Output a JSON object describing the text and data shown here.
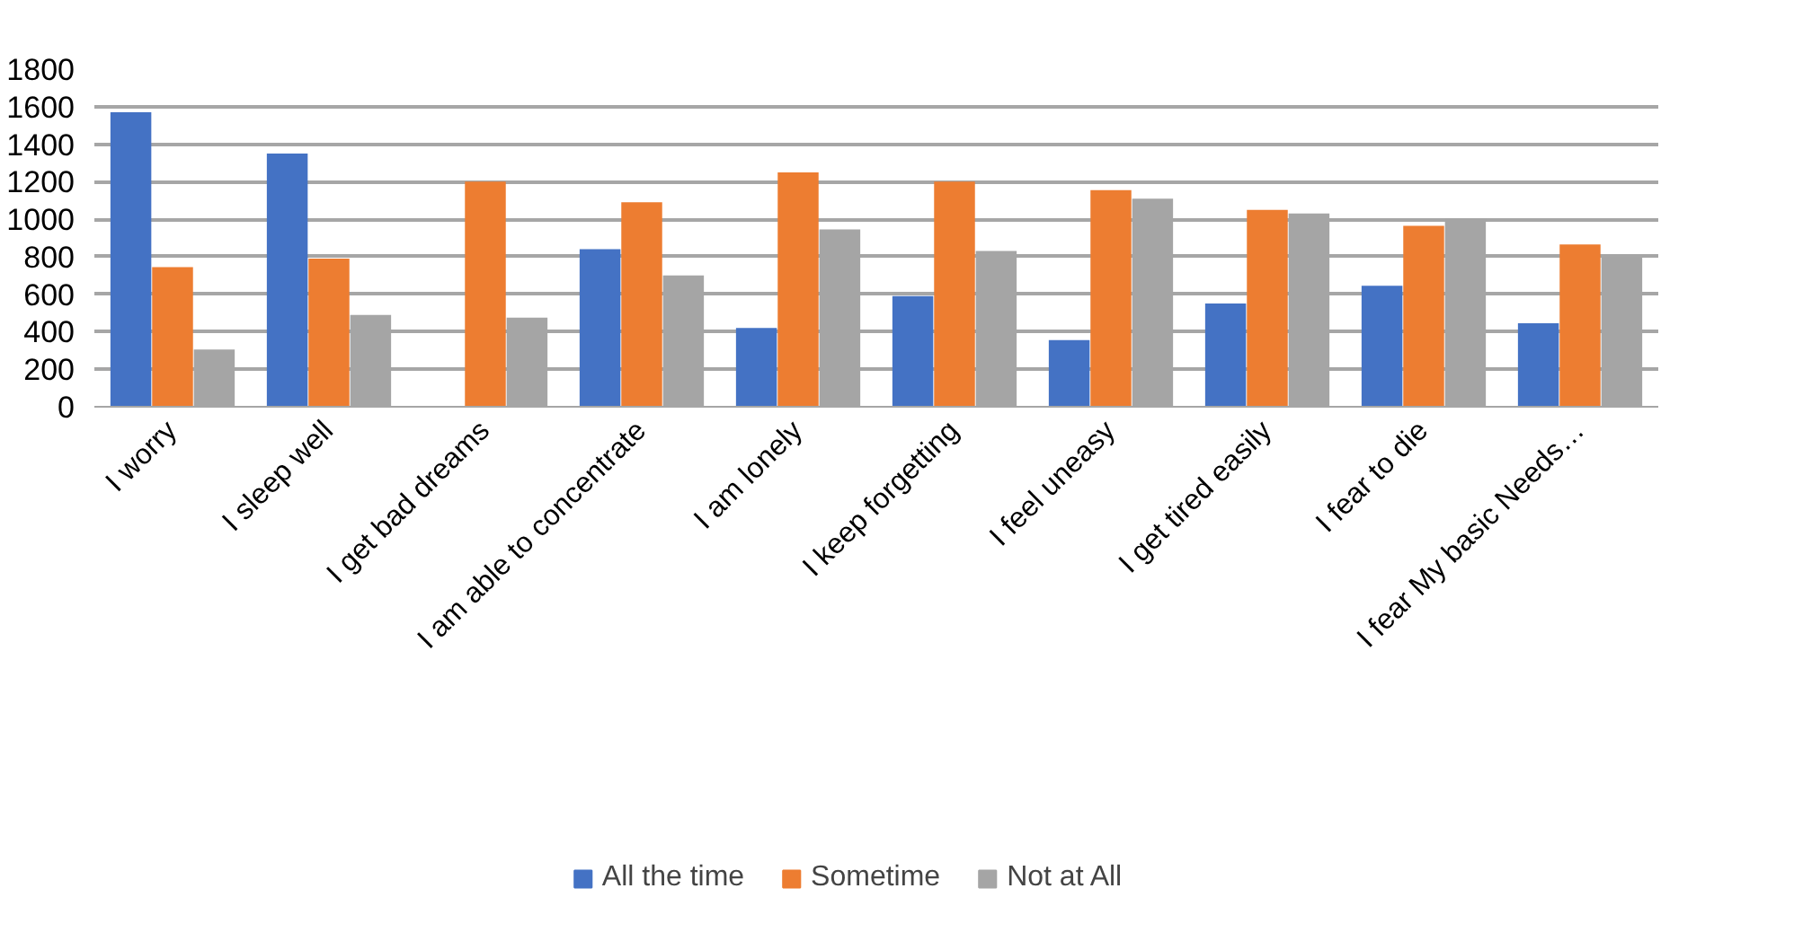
{
  "chart_data": {
    "type": "bar",
    "categories": [
      "I worry",
      "I sleep well",
      "I get bad dreams",
      "I am able to concentrate",
      "I am lonely",
      "I keep forgetting",
      "I feel uneasy",
      "I get tired easily",
      "I fear to die",
      "I fear My basic Needs…"
    ],
    "series": [
      {
        "name": "All the time",
        "color": "#4472c4",
        "values": [
          1570,
          1350,
          0,
          840,
          420,
          590,
          355,
          550,
          645,
          445
        ]
      },
      {
        "name": "Sometime",
        "color": "#ed7d31",
        "values": [
          745,
          790,
          1200,
          1090,
          1250,
          1200,
          1155,
          1050,
          965,
          865
        ]
      },
      {
        "name": "Not at All",
        "color": "#a5a5a5",
        "values": [
          305,
          490,
          475,
          700,
          945,
          830,
          1110,
          1030,
          1005,
          800
        ]
      }
    ],
    "ylim": [
      0,
      1800
    ],
    "yticks": [
      0,
      200,
      400,
      600,
      800,
      1000,
      1200,
      1400,
      1600,
      1800
    ],
    "grid": "y",
    "legend": "bottom"
  }
}
